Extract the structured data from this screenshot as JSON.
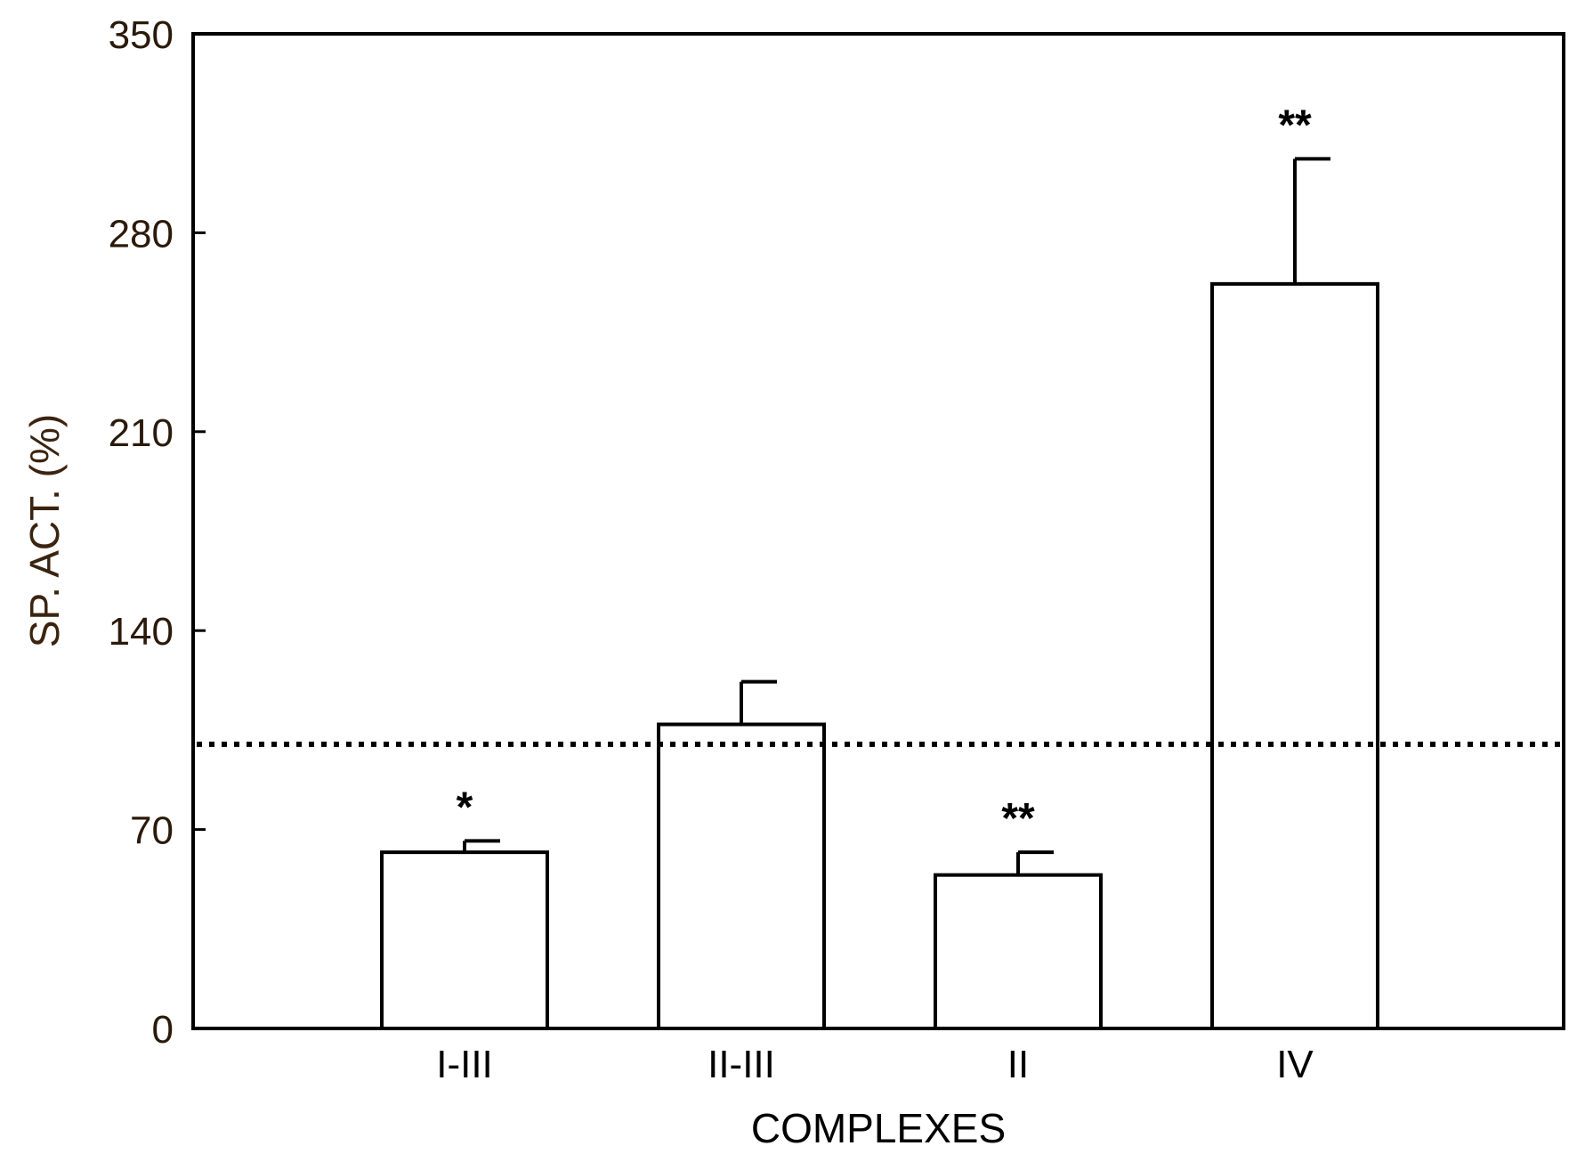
{
  "chart_data": {
    "type": "bar",
    "categories": [
      "I-III",
      "II-III",
      "II",
      "IV"
    ],
    "values": [
      62,
      107,
      54,
      262
    ],
    "error_plus": [
      4,
      15,
      8,
      44
    ],
    "annotations": [
      "*",
      "",
      "**",
      "**"
    ],
    "reference_line": 100,
    "xlabel": "COMPLEXES",
    "ylabel": "SP. ACT. (%)",
    "ylim": [
      0,
      350
    ],
    "yticks": [
      0,
      70,
      140,
      210,
      280,
      350
    ],
    "grid": false,
    "legend": "none",
    "colors": {
      "bar_fill": "#ffffff",
      "bar_stroke": "#000000",
      "axis": "#000000",
      "reference_line": "#000000",
      "ylabel_text": "#3a2410"
    }
  }
}
